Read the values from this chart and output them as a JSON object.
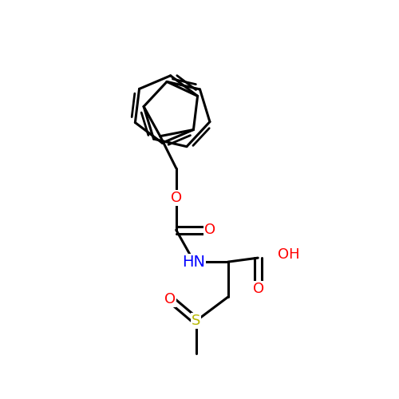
{
  "background_color": "#ffffff",
  "bond_color": "#000000",
  "bond_width": 2.2,
  "atom_colors": {
    "O": "#ff0000",
    "N": "#0000ff",
    "S": "#b8b800",
    "H": "#000000",
    "C": "#000000"
  },
  "font_size_atom": 13
}
